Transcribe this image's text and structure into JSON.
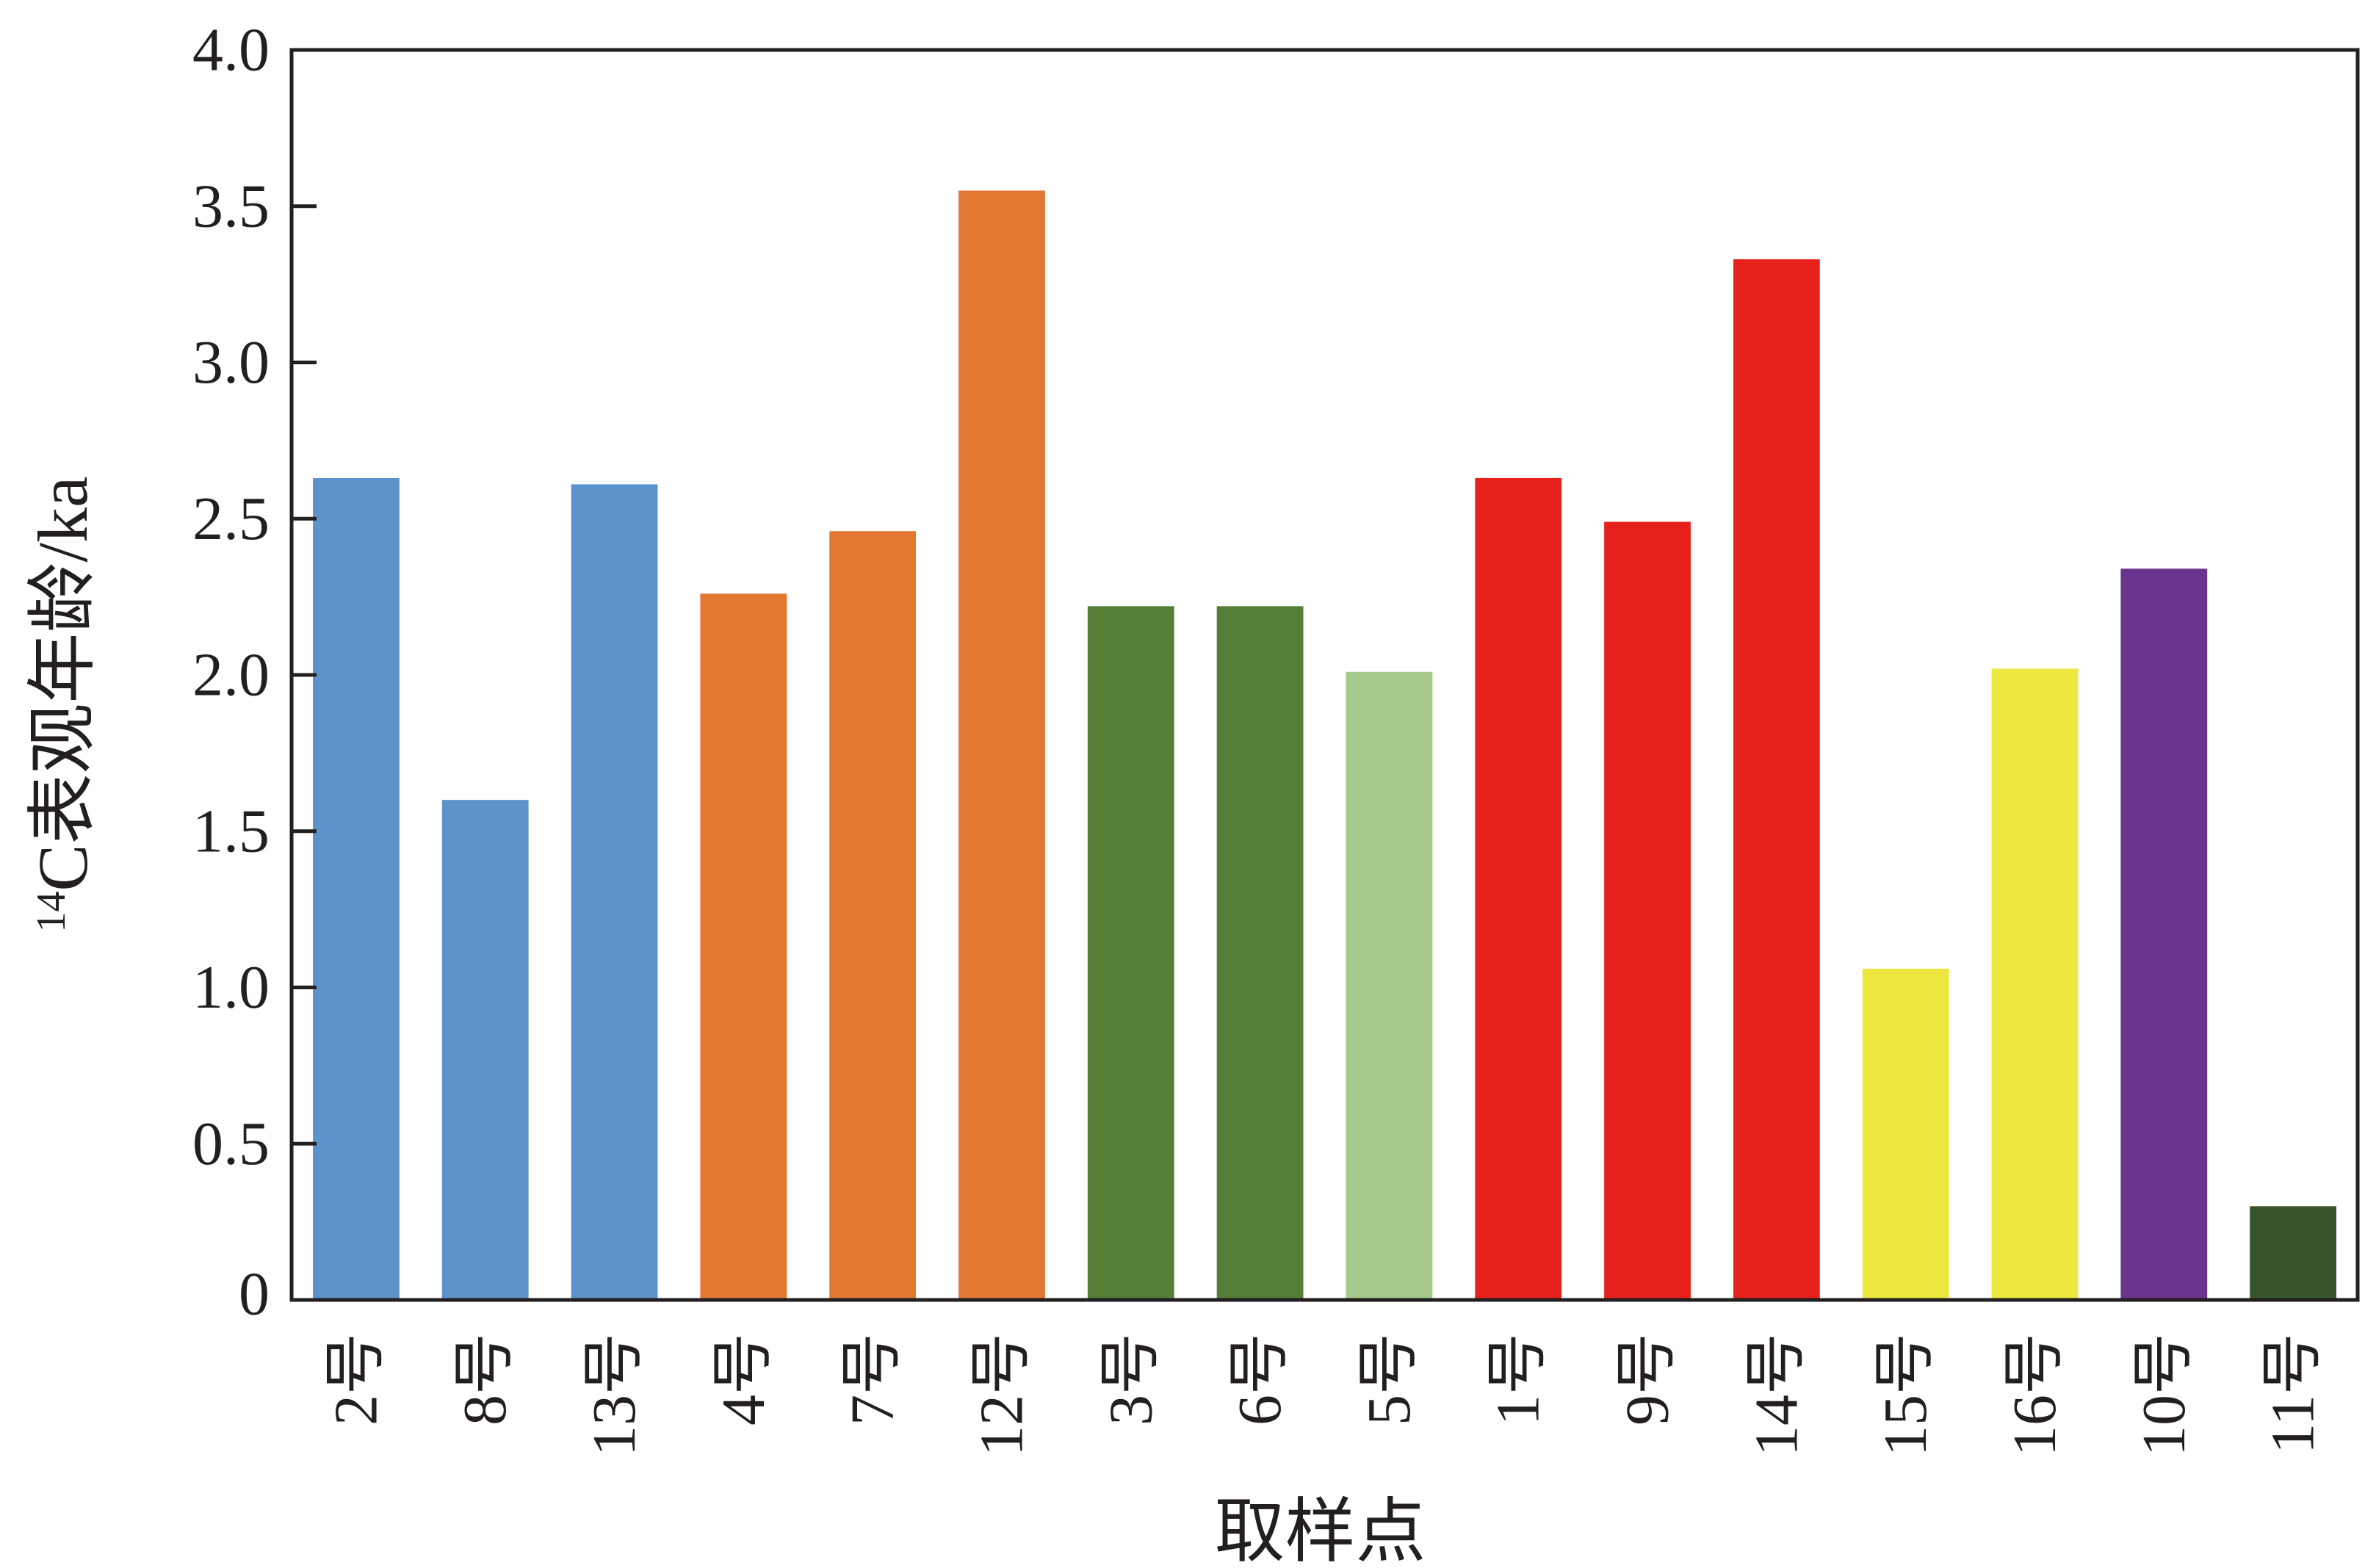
{
  "chart_data": {
    "type": "bar",
    "xlabel": "取样点",
    "ylabel_superscript": "14",
    "ylabel": "C表观年龄/ka",
    "ylim": [
      0,
      4.0
    ],
    "yticks": [
      0,
      0.5,
      1.0,
      1.5,
      2.0,
      2.5,
      3.0,
      3.5,
      4.0
    ],
    "ytick_labels": [
      "0",
      "0.5",
      "1.0",
      "1.5",
      "2.0",
      "2.5",
      "3.0",
      "3.5",
      "4.0"
    ],
    "grid": false,
    "legend": "none",
    "categories": [
      "2号",
      "8号",
      "13号",
      "4号",
      "7号",
      "12号",
      "3号",
      "6号",
      "5号",
      "1号",
      "9号",
      "14号",
      "15号",
      "16号",
      "10号",
      "11号"
    ],
    "values": [
      2.63,
      1.6,
      2.61,
      2.26,
      2.46,
      3.55,
      2.22,
      2.22,
      2.01,
      2.63,
      2.49,
      3.33,
      1.06,
      2.02,
      2.34,
      0.3
    ],
    "colors": [
      "#5b93ca",
      "#5b93ca",
      "#5b93ca",
      "#e37833",
      "#e37833",
      "#e37833",
      "#557f37",
      "#557f37",
      "#a6ca8b",
      "#e6201b",
      "#e6201b",
      "#e6201b",
      "#ede83f",
      "#ede83f",
      "#6a348f",
      "#37552c"
    ]
  }
}
